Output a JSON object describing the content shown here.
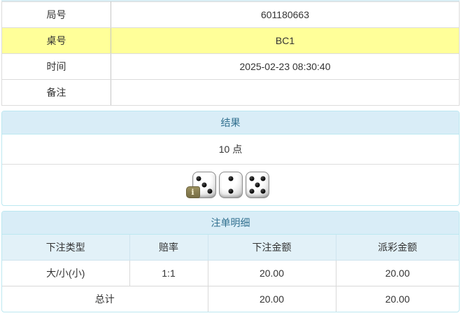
{
  "info_table": {
    "rows": [
      {
        "label": "局号",
        "value": "601180663",
        "highlight": false
      },
      {
        "label": "桌号",
        "value": "BC1",
        "highlight": true
      },
      {
        "label": "时间",
        "value": "2025-02-23 08:30:40",
        "highlight": false
      },
      {
        "label": "备注",
        "value": "",
        "highlight": false
      }
    ]
  },
  "result_panel": {
    "title": "结果",
    "points": "10 点",
    "dice": [
      3,
      2,
      5
    ],
    "info_icon": "i"
  },
  "bets_panel": {
    "title": "注单明细",
    "columns": [
      "下注类型",
      "赔率",
      "下注金额",
      "派彩金额"
    ],
    "rows": [
      {
        "type": "大/小(小)",
        "odds": "1:1",
        "bet": "20.00",
        "payout": "20.00"
      }
    ],
    "total": {
      "label": "总计",
      "bet": "20.00",
      "payout": "20.00"
    }
  },
  "colors": {
    "highlight_yellow": "#ffff99",
    "panel_header_bg": "#d9edf7",
    "panel_border": "#bce8f1",
    "panel_title_text": "#31708f",
    "odds_red": "#e83333"
  }
}
